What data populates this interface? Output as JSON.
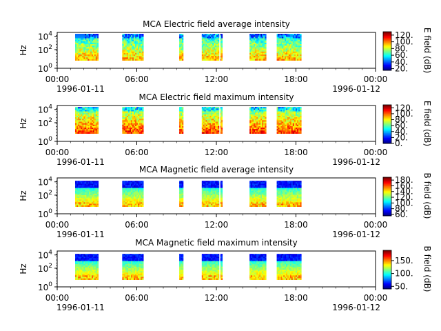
{
  "chart_data": [
    {
      "type": "heatmap",
      "title": "MCA  Electric field average intensity",
      "ylabel": "Hz",
      "y_scale": "log",
      "y_ticks": [
        {
          "base": "10",
          "exp": "0"
        },
        {
          "base": "10",
          "exp": "2"
        },
        {
          "base": "10",
          "exp": "4"
        }
      ],
      "x_ticks": [
        "00:00",
        "06:00",
        "12:00",
        "18:00",
        "00:00"
      ],
      "x_date_start": "1996-01-11",
      "x_date_end": "1996-01-12",
      "xlim": [
        "1996-01-11 00:00",
        "1996-01-12 00:00"
      ],
      "data_intervals_hours": [
        [
          1.35,
          2.1
        ],
        [
          2.1,
          3.1
        ],
        [
          4.9,
          5.35
        ],
        [
          5.35,
          6.5
        ],
        [
          9.2,
          9.5
        ],
        [
          10.9,
          12.2
        ],
        [
          12.3,
          12.45
        ],
        [
          14.5,
          15.75
        ],
        [
          16.55,
          17.65
        ],
        [
          17.65,
          18.4
        ]
      ],
      "colorbar": {
        "label": "E field (dB)",
        "ticks": [
          "20.",
          "40.",
          "60.",
          "80.",
          "100.",
          "120."
        ],
        "range": [
          15,
          130
        ]
      }
    },
    {
      "type": "heatmap",
      "title": "MCA  Electric field maximum intensity",
      "ylabel": "Hz",
      "y_scale": "log",
      "y_ticks": [
        {
          "base": "10",
          "exp": "0"
        },
        {
          "base": "10",
          "exp": "2"
        },
        {
          "base": "10",
          "exp": "4"
        }
      ],
      "x_ticks": [
        "00:00",
        "06:00",
        "12:00",
        "18:00",
        "00:00"
      ],
      "x_date_start": "1996-01-11",
      "x_date_end": "1996-01-12",
      "xlim": [
        "1996-01-11 00:00",
        "1996-01-12 00:00"
      ],
      "data_intervals_hours": [
        [
          1.35,
          2.1
        ],
        [
          2.1,
          3.1
        ],
        [
          4.9,
          5.35
        ],
        [
          5.35,
          6.5
        ],
        [
          9.2,
          9.5
        ],
        [
          10.9,
          12.2
        ],
        [
          12.3,
          12.45
        ],
        [
          14.5,
          15.75
        ],
        [
          16.55,
          17.65
        ],
        [
          17.65,
          18.4
        ]
      ],
      "colorbar": {
        "label": "E field (dB)",
        "ticks": [
          "0.",
          "20.",
          "40.",
          "60.",
          "80.",
          "100.",
          "120."
        ],
        "range": [
          0,
          130
        ]
      }
    },
    {
      "type": "heatmap",
      "title": "MCA  Magnetic field average intensity",
      "ylabel": "Hz",
      "y_scale": "log",
      "y_ticks": [
        {
          "base": "10",
          "exp": "0"
        },
        {
          "base": "10",
          "exp": "2"
        },
        {
          "base": "10",
          "exp": "4"
        }
      ],
      "x_ticks": [
        "00:00",
        "06:00",
        "12:00",
        "18:00",
        "00:00"
      ],
      "x_date_start": "1996-01-11",
      "x_date_end": "1996-01-12",
      "xlim": [
        "1996-01-11 00:00",
        "1996-01-12 00:00"
      ],
      "data_intervals_hours": [
        [
          1.35,
          2.1
        ],
        [
          2.1,
          3.1
        ],
        [
          4.9,
          5.35
        ],
        [
          5.35,
          6.5
        ],
        [
          9.2,
          9.5
        ],
        [
          10.9,
          12.2
        ],
        [
          12.3,
          12.45
        ],
        [
          14.5,
          15.75
        ],
        [
          16.55,
          17.65
        ],
        [
          17.65,
          18.4
        ]
      ],
      "colorbar": {
        "label": "B field (dB)",
        "ticks": [
          "60.",
          "80.",
          "100.",
          "120.",
          "140.",
          "160.",
          "180."
        ],
        "range": [
          55,
          190
        ]
      }
    },
    {
      "type": "heatmap",
      "title": "MCA  Magnetic field maximum intensity",
      "ylabel": "Hz",
      "y_scale": "log",
      "y_ticks": [
        {
          "base": "10",
          "exp": "0"
        },
        {
          "base": "10",
          "exp": "2"
        },
        {
          "base": "10",
          "exp": "4"
        }
      ],
      "x_ticks": [
        "00:00",
        "06:00",
        "12:00",
        "18:00",
        "00:00"
      ],
      "x_date_start": "1996-01-11",
      "x_date_end": "1996-01-12",
      "xlim": [
        "1996-01-11 00:00",
        "1996-01-12 00:00"
      ],
      "data_intervals_hours": [
        [
          1.35,
          2.1
        ],
        [
          2.1,
          3.1
        ],
        [
          4.9,
          5.35
        ],
        [
          5.35,
          6.5
        ],
        [
          9.2,
          9.5
        ],
        [
          10.9,
          12.2
        ],
        [
          12.3,
          12.45
        ],
        [
          14.5,
          15.75
        ],
        [
          16.55,
          17.65
        ],
        [
          17.65,
          18.4
        ]
      ],
      "colorbar": {
        "label": "B field (dB)",
        "ticks": [
          "50.",
          "100.",
          "150."
        ],
        "range": [
          40,
          190
        ]
      }
    }
  ]
}
